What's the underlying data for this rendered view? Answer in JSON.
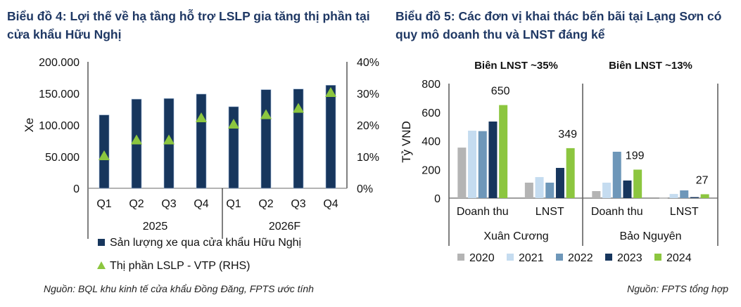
{
  "chart_data": [
    {
      "type": "bar",
      "title": "Biểu đồ 4: Lợi thế về hạ tầng hỗ trợ LSLP gia tăng thị phần tại cửa khẩu Hữu Nghị",
      "categories": [
        "Q1",
        "Q2",
        "Q3",
        "Q4",
        "Q1",
        "Q2",
        "Q3",
        "Q4"
      ],
      "groups": [
        "2025",
        "2026F"
      ],
      "ylabel": "Xe",
      "ylim": [
        0,
        200000
      ],
      "yticks": [
        "0",
        "50.000",
        "100.000",
        "150.000",
        "200.000"
      ],
      "y2lim": [
        0,
        40
      ],
      "y2ticks": [
        "0%",
        "10%",
        "20%",
        "30%",
        "40%"
      ],
      "series": [
        {
          "name": "Sản lượng xe qua cửa khẩu Hữu Nghị",
          "kind": "bar",
          "color": "#17365d",
          "values": [
            116000,
            141000,
            142000,
            149000,
            129000,
            156000,
            157000,
            163000
          ]
        },
        {
          "name": "Thị phần LSLP - VTP (RHS)",
          "kind": "marker",
          "color": "#8cc63f",
          "values": [
            10,
            15,
            15,
            22,
            20,
            23,
            25,
            30
          ]
        }
      ],
      "source": "Nguồn: BQL khu kinh tế cửa khẩu Đồng Đăng, FPTS ước tính"
    },
    {
      "type": "bar",
      "title": "Biểu đồ 5: Các đơn vị khai thác bến bãi tại Lạng Sơn có quy mô doanh thu và LNST đáng kể",
      "ylabel": "Tỷ VND",
      "ylim": [
        0,
        800
      ],
      "yticks": [
        "0",
        "200",
        "400",
        "600",
        "800"
      ],
      "groups": [
        {
          "name": "Xuân Cương",
          "annotation": "Biên LNST ~35%",
          "categories": [
            {
              "name": "Doanh thu",
              "values": [
                353,
                471,
                468,
                535,
                650
              ],
              "label": "650"
            },
            {
              "name": "LNST",
              "values": [
                108,
                147,
                108,
                211,
                349
              ],
              "label": "349"
            }
          ]
        },
        {
          "name": "Bảo Nguyên",
          "annotation": "Biên LNST ~13%",
          "categories": [
            {
              "name": "Doanh thu",
              "values": [
                49,
                108,
                324,
                123,
                199
              ],
              "label": "199"
            },
            {
              "name": "LNST",
              "values": [
                2,
                29,
                54,
                7,
                27
              ],
              "label": "27"
            }
          ]
        }
      ],
      "series": [
        {
          "name": "2020",
          "color": "#b4b4b4"
        },
        {
          "name": "2021",
          "color": "#c5dcf0"
        },
        {
          "name": "2022",
          "color": "#6e97b9"
        },
        {
          "name": "2023",
          "color": "#17365d"
        },
        {
          "name": "2024",
          "color": "#8cc63f"
        }
      ],
      "source": "Nguồn: FPTS tổng hợp"
    }
  ]
}
